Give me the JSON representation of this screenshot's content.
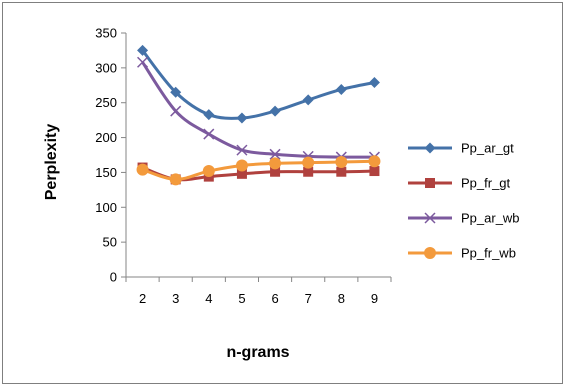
{
  "chart_data": {
    "type": "line",
    "title": "",
    "xlabel": "n-grams",
    "ylabel": "Perplexity",
    "x": [
      2,
      3,
      4,
      5,
      6,
      7,
      8,
      9
    ],
    "ylim": [
      0,
      350
    ],
    "yticks": [
      0,
      50,
      100,
      150,
      200,
      250,
      300,
      350
    ],
    "grid": false,
    "legend_position": "right",
    "series": [
      {
        "name": "Pp_ar_gt",
        "color": "#4472a8",
        "marker": "diamond",
        "values": [
          325,
          265,
          233,
          228,
          238,
          254,
          269,
          279
        ]
      },
      {
        "name": "Pp_fr_gt",
        "color": "#b0413e",
        "marker": "square",
        "values": [
          157,
          140,
          144,
          148,
          151,
          151,
          151,
          152
        ]
      },
      {
        "name": "Pp_ar_wb",
        "color": "#7c5a9e",
        "marker": "x",
        "values": [
          308,
          238,
          205,
          182,
          176,
          173,
          172,
          172
        ]
      },
      {
        "name": "Pp_fr_wb",
        "color": "#f39a3c",
        "marker": "circle",
        "values": [
          154,
          140,
          152,
          160,
          163,
          164,
          165,
          166
        ]
      }
    ]
  }
}
